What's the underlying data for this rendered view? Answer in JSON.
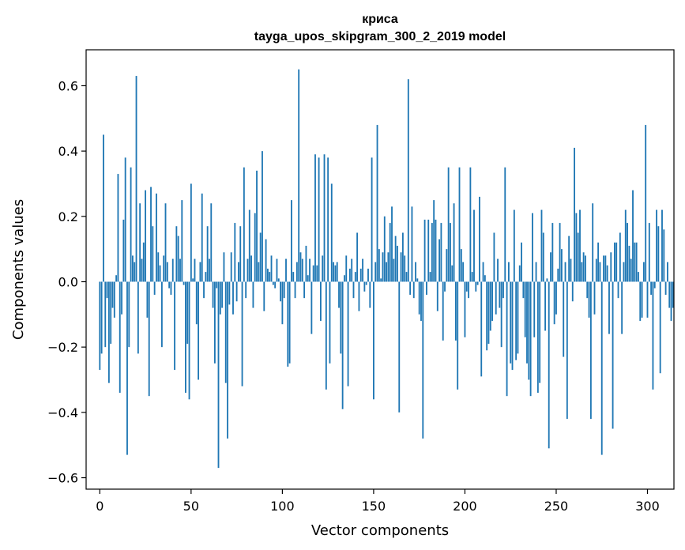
{
  "chart_data": {
    "type": "bar",
    "title": "криса",
    "subtitle": "tayga_upos_skipgram_300_2_2019 model",
    "xlabel": "Vector components",
    "ylabel": "Components values",
    "xlim": [
      -7.5,
      314.5
    ],
    "ylim": [
      -0.635,
      0.71
    ],
    "xticks": [
      0,
      50,
      100,
      150,
      200,
      250,
      300
    ],
    "yticks": [
      -0.6,
      -0.4,
      -0.2,
      0.0,
      0.2,
      0.4,
      0.6
    ],
    "ytick_labels": [
      "−0.6",
      "−0.4",
      "−0.2",
      "0.0",
      "0.2",
      "0.4",
      "0.6"
    ],
    "bar_color": "#1f77b4",
    "grid": false,
    "values": [
      -0.27,
      -0.22,
      0.45,
      -0.2,
      -0.05,
      -0.31,
      -0.19,
      -0.08,
      -0.11,
      0.02,
      0.33,
      -0.34,
      -0.1,
      0.19,
      0.38,
      -0.53,
      -0.2,
      0.35,
      0.08,
      0.06,
      0.63,
      -0.22,
      0.24,
      0.07,
      0.12,
      0.28,
      -0.11,
      -0.35,
      0.29,
      0.17,
      -0.04,
      0.27,
      0.09,
      0.05,
      -0.2,
      0.08,
      0.24,
      0.06,
      -0.02,
      -0.04,
      0.07,
      -0.27,
      0.17,
      0.14,
      0.07,
      0.25,
      -0.01,
      -0.34,
      -0.19,
      -0.36,
      0.3,
      0.01,
      0.07,
      -0.13,
      -0.3,
      0.06,
      0.27,
      -0.05,
      0.03,
      0.17,
      0.07,
      0.24,
      -0.08,
      -0.25,
      -0.02,
      -0.57,
      -0.1,
      -0.08,
      0.09,
      -0.31,
      -0.48,
      -0.07,
      0.09,
      -0.1,
      0.18,
      -0.06,
      0.06,
      0.17,
      -0.32,
      0.35,
      -0.05,
      0.07,
      0.22,
      0.08,
      -0.08,
      0.21,
      0.34,
      0.06,
      0.15,
      0.4,
      -0.09,
      0.13,
      0.04,
      0.03,
      0.08,
      -0.01,
      -0.02,
      0.07,
      0.01,
      -0.06,
      -0.13,
      -0.05,
      0.07,
      -0.26,
      -0.25,
      0.25,
      0.03,
      -0.05,
      0.06,
      0.65,
      0.09,
      0.07,
      -0.05,
      0.11,
      0.02,
      0.07,
      -0.16,
      0.05,
      0.39,
      0.05,
      0.38,
      -0.12,
      0.08,
      0.39,
      -0.33,
      0.38,
      -0.25,
      0.3,
      0.06,
      0.05,
      0.06,
      -0.08,
      -0.22,
      -0.39,
      0.02,
      0.08,
      -0.32,
      0.04,
      0.07,
      -0.05,
      0.03,
      0.15,
      -0.09,
      0.04,
      0.07,
      -0.03,
      -0.01,
      0.04,
      -0.08,
      0.38,
      -0.36,
      0.06,
      0.48,
      0.1,
      0.01,
      0.09,
      0.2,
      0.06,
      0.09,
      0.18,
      0.23,
      0.07,
      0.14,
      0.11,
      -0.4,
      0.09,
      0.15,
      0.08,
      0.03,
      0.62,
      -0.04,
      0.23,
      -0.05,
      0.06,
      0.01,
      -0.1,
      -0.12,
      -0.48,
      0.19,
      -0.04,
      0.19,
      0.03,
      0.18,
      0.25,
      0.19,
      -0.09,
      0.13,
      0.18,
      -0.18,
      -0.03,
      0.1,
      0.35,
      0.18,
      0.05,
      0.24,
      -0.18,
      -0.33,
      0.35,
      0.1,
      0.06,
      -0.17,
      -0.03,
      -0.05,
      0.35,
      0.03,
      0.22,
      -0.03,
      -0.01,
      0.26,
      -0.29,
      0.06,
      0.02,
      -0.21,
      -0.19,
      -0.15,
      -0.12,
      0.15,
      -0.1,
      0.07,
      -0.08,
      -0.2,
      -0.05,
      0.35,
      -0.35,
      0.06,
      -0.25,
      -0.27,
      0.22,
      -0.24,
      -0.22,
      0.05,
      0.12,
      -0.05,
      -0.17,
      -0.25,
      -0.3,
      -0.35,
      0.21,
      -0.17,
      0.06,
      -0.34,
      -0.31,
      0.22,
      0.15,
      -0.15,
      0.01,
      -0.51,
      0.09,
      0.18,
      -0.13,
      -0.1,
      0.04,
      0.18,
      0.1,
      -0.23,
      0.06,
      -0.42,
      0.14,
      0.07,
      -0.06,
      0.41,
      0.21,
      0.15,
      0.22,
      0.06,
      0.09,
      0.08,
      -0.05,
      -0.11,
      -0.42,
      0.24,
      -0.1,
      0.07,
      0.12,
      0.06,
      -0.53,
      0.08,
      0.08,
      0.05,
      -0.16,
      0.09,
      -0.45,
      0.12,
      0.12,
      -0.05,
      0.15,
      -0.16,
      0.06,
      0.22,
      0.18,
      0.11,
      0.07,
      0.28,
      0.12,
      0.12,
      0.03,
      -0.12,
      -0.11,
      0.06,
      0.48,
      -0.11,
      0.18,
      -0.04,
      -0.33,
      -0.02,
      0.22,
      0.17,
      -0.28,
      0.22,
      0.16,
      -0.04,
      0.06,
      -0.08,
      -0.12,
      -0.08
    ]
  }
}
